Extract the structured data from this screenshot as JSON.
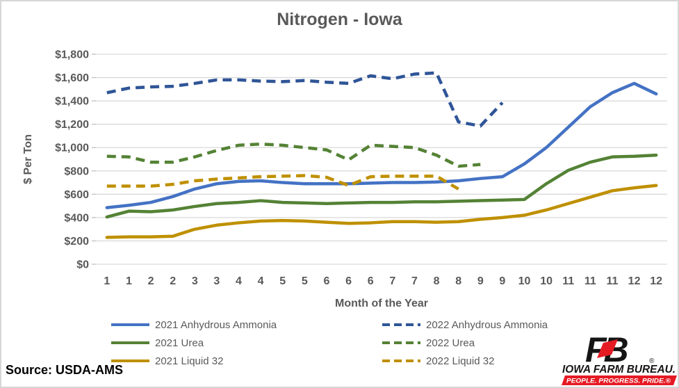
{
  "title": "Nitrogen - Iowa",
  "source": "Source: USDA-AMS",
  "y_axis": {
    "label": "$ Per Ton"
  },
  "x_axis": {
    "label": "Month of the Year"
  },
  "colors": {
    "text": "#595959",
    "gridline": "#d9d9d9",
    "tick": "#bfbfbf",
    "blue_2021": "#4472C4",
    "navy_2022": "#2F5597",
    "green": "#548235",
    "gold": "#BF9000",
    "logo_red": "#E51B24",
    "logo_black": "#151515"
  },
  "logo": {
    "fb": "FB",
    "registered": "®",
    "name": "IOWA FARM BUREAU.",
    "tagline": "PEOPLE. PROGRESS. PRIDE.®"
  },
  "chart_data": {
    "type": "line",
    "title": "Nitrogen - Iowa",
    "xlabel": "Month of the Year",
    "ylabel": "$ Per Ton",
    "ylim": [
      0,
      1800
    ],
    "ytick_step": 200,
    "grid": "horizontal",
    "legend_position": "bottom-two-columns",
    "y_tick_labels": [
      "$0",
      "$200",
      "$400",
      "$600",
      "$800",
      "$1,000",
      "$1,200",
      "$1,400",
      "$1,600",
      "$1,800"
    ],
    "x_tick_labels": [
      "1",
      "1",
      "2",
      "2",
      "3",
      "3",
      "4",
      "4",
      "5",
      "5",
      "6",
      "6",
      "6",
      "7",
      "7",
      "8",
      "8",
      "9",
      "9",
      "10",
      "10",
      "11",
      "11",
      "11",
      "12",
      "12"
    ],
    "series": [
      {
        "name": "2021 Anhydrous Ammonia",
        "color": "#4472C4",
        "dash": "solid",
        "values": [
          485,
          505,
          530,
          580,
          645,
          690,
          710,
          715,
          700,
          690,
          690,
          690,
          695,
          700,
          700,
          705,
          715,
          735,
          750,
          860,
          1000,
          1175,
          1350,
          1470,
          1550,
          1460
        ]
      },
      {
        "name": "2021 Urea",
        "color": "#548235",
        "dash": "solid",
        "values": [
          405,
          455,
          450,
          465,
          495,
          520,
          530,
          545,
          530,
          525,
          520,
          525,
          530,
          530,
          535,
          535,
          540,
          545,
          550,
          555,
          690,
          805,
          875,
          920,
          925,
          935
        ]
      },
      {
        "name": "2021 Liquid 32",
        "color": "#BF9000",
        "dash": "solid",
        "values": [
          230,
          235,
          235,
          240,
          300,
          335,
          355,
          370,
          375,
          370,
          360,
          350,
          355,
          365,
          365,
          360,
          365,
          385,
          400,
          420,
          465,
          520,
          575,
          630,
          655,
          675
        ]
      },
      {
        "name": "2022 Anhydrous Ammonia",
        "color": "#2F5597",
        "dash": "dashed",
        "values": [
          1470,
          1510,
          1520,
          1525,
          1550,
          1580,
          1580,
          1570,
          1565,
          1575,
          1560,
          1550,
          1615,
          1590,
          1630,
          1640,
          1220,
          1185,
          1385
        ]
      },
      {
        "name": "2022 Urea",
        "color": "#548235",
        "dash": "dashed",
        "values": [
          925,
          920,
          875,
          875,
          920,
          975,
          1020,
          1030,
          1020,
          1000,
          980,
          895,
          1020,
          1010,
          1000,
          935,
          840,
          855
        ]
      },
      {
        "name": "2022 Liquid 32",
        "color": "#BF9000",
        "dash": "dashed",
        "values": [
          670,
          670,
          670,
          685,
          715,
          730,
          740,
          750,
          755,
          760,
          745,
          675,
          750,
          755,
          755,
          755,
          645
        ]
      }
    ]
  },
  "legend": {
    "column1_series": [
      0,
      1,
      2
    ],
    "column2_series": [
      3,
      4,
      5
    ]
  }
}
